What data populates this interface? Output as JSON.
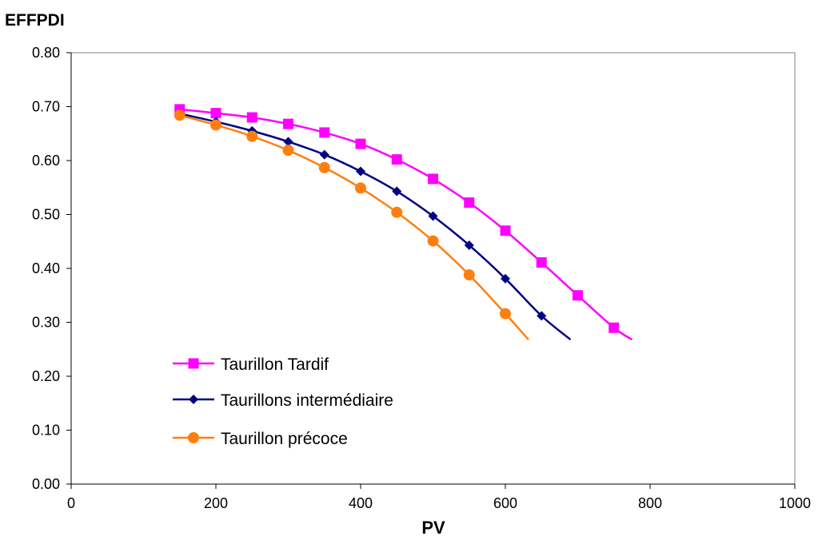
{
  "chart_data": {
    "type": "line",
    "title": "",
    "xlabel": "PV",
    "ylabel": "EFFPDI",
    "xlim": [
      0,
      1000
    ],
    "ylim": [
      0,
      0.8
    ],
    "x_ticks": [
      "0",
      "200",
      "400",
      "600",
      "800",
      "1000"
    ],
    "y_ticks": [
      "0.00",
      "0.10",
      "0.20",
      "0.30",
      "0.40",
      "0.50",
      "0.60",
      "0.70",
      "0.80"
    ],
    "grid": false,
    "legend_position": "lower-left",
    "series": [
      {
        "name": "Taurillon Tardif",
        "color": "#ff00ff",
        "marker": "square",
        "x": [
          150,
          200,
          250,
          300,
          350,
          400,
          450,
          500,
          550,
          600,
          650,
          700,
          750,
          775
        ],
        "y": [
          0.695,
          0.688,
          0.68,
          0.668,
          0.652,
          0.631,
          0.602,
          0.566,
          0.522,
          0.47,
          0.411,
          0.35,
          0.29,
          0.268
        ],
        "marker_count": 13
      },
      {
        "name": "Taurillons intermédiaire",
        "color": "#000080",
        "marker": "diamond",
        "x": [
          150,
          200,
          250,
          300,
          350,
          400,
          450,
          500,
          550,
          600,
          650,
          690
        ],
        "y": [
          0.687,
          0.672,
          0.655,
          0.635,
          0.611,
          0.58,
          0.543,
          0.497,
          0.443,
          0.381,
          0.312,
          0.268
        ],
        "marker_count": 11
      },
      {
        "name": "Taurillon précoce",
        "color": "#ff7f0e",
        "marker": "circle",
        "x": [
          150,
          200,
          250,
          300,
          350,
          400,
          450,
          500,
          550,
          600,
          632
        ],
        "y": [
          0.684,
          0.666,
          0.645,
          0.619,
          0.587,
          0.549,
          0.504,
          0.451,
          0.388,
          0.316,
          0.268
        ],
        "marker_count": 10
      }
    ]
  }
}
